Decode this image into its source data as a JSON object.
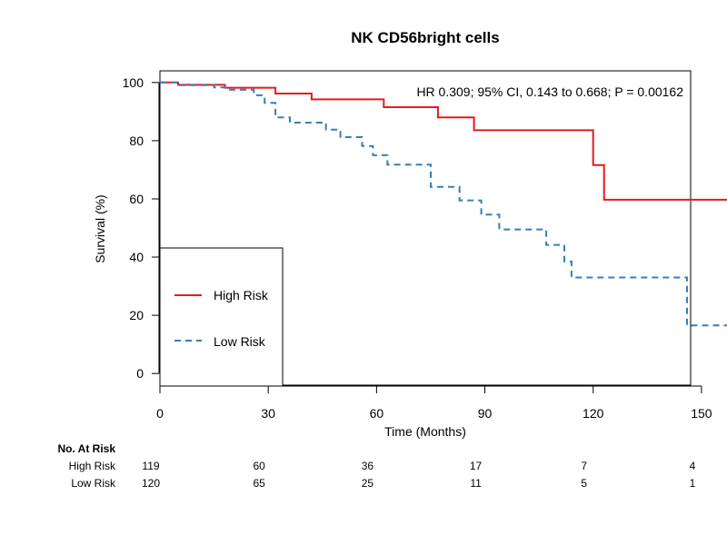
{
  "chart_data": {
    "type": "line",
    "subtype": "kaplan-meier",
    "title": "NK CD56bright cells",
    "xlabel": "Time (Months)",
    "ylabel": "Survival (%)",
    "xlim": [
      0,
      147
    ],
    "ylim": [
      -4,
      104
    ],
    "xticks": [
      0,
      30,
      60,
      90,
      120,
      150
    ],
    "yticks": [
      0,
      20,
      40,
      60,
      80,
      100
    ],
    "grid": false,
    "annotation": "HR 0.309; 95% CI, 0.143 to 0.668; P = 0.00162",
    "legend": {
      "position": "bottom-left",
      "entries": [
        "High Risk",
        "Low Risk"
      ]
    },
    "series": [
      {
        "name": "High Risk",
        "color": "#e41a1c",
        "linestyle": "solid",
        "steps": [
          [
            0,
            100
          ],
          [
            5,
            99.2
          ],
          [
            18,
            98.2
          ],
          [
            32,
            96.2
          ],
          [
            42,
            94.2
          ],
          [
            62,
            91.5
          ],
          [
            77,
            88
          ],
          [
            87,
            83.6
          ],
          [
            120,
            71.6
          ],
          [
            123,
            59.7
          ],
          [
            170,
            59.7
          ]
        ]
      },
      {
        "name": "Low Risk",
        "color": "#377eb8",
        "linestyle": "dashed",
        "steps": [
          [
            0,
            100
          ],
          [
            5,
            99.1
          ],
          [
            15,
            98.3
          ],
          [
            19,
            97.5
          ],
          [
            26,
            95.6
          ],
          [
            29,
            93
          ],
          [
            32,
            88
          ],
          [
            36,
            86.2
          ],
          [
            42,
            86.2
          ],
          [
            46,
            83.8
          ],
          [
            50,
            81.2
          ],
          [
            56,
            78.2
          ],
          [
            59,
            75
          ],
          [
            63,
            71.8
          ],
          [
            75,
            64.1
          ],
          [
            83,
            59.5
          ],
          [
            89,
            54.6
          ],
          [
            94,
            49.5
          ],
          [
            107,
            44.2
          ],
          [
            112,
            38.5
          ],
          [
            114,
            33
          ],
          [
            146,
            16.5
          ],
          [
            167,
            16.5
          ]
        ]
      }
    ],
    "risk_table": {
      "title": "No. At Risk",
      "times": [
        0,
        30,
        60,
        90,
        120,
        150
      ],
      "rows": [
        {
          "label": "High Risk",
          "values": [
            "119",
            "60",
            "36",
            "17",
            "7",
            "4"
          ]
        },
        {
          "label": "Low Risk",
          "values": [
            "120",
            "65",
            "25",
            "11",
            "5",
            "1"
          ]
        }
      ]
    }
  }
}
